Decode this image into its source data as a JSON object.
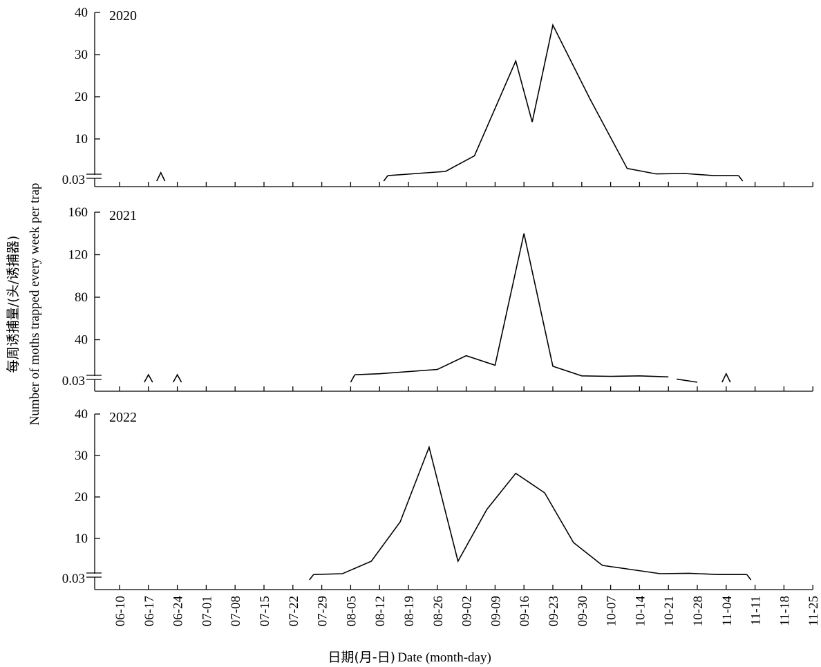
{
  "y_label_cn": "每周诱捕量/(头/诱捕器)",
  "y_label_en": "Number of moths trapped every week per trap",
  "x_label_cn": "日期(月-日)",
  "x_label_en": "Date (month-day)",
  "chart_data": {
    "type": "line",
    "x_categories": [
      "06-10",
      "06-17",
      "06-24",
      "07-01",
      "07-08",
      "07-15",
      "07-22",
      "07-29",
      "08-05",
      "08-12",
      "08-19",
      "08-26",
      "09-02",
      "09-09",
      "09-16",
      "09-23",
      "09-30",
      "10-07",
      "10-14",
      "10-21",
      "10-28",
      "11-04",
      "11-11",
      "11-18",
      "11-25"
    ],
    "xlabel": "日期(月-日) Date (month-day)",
    "ylabel": "每周诱捕量/(头/诱捕器) Number of moths trapped every week per trap",
    "panels": [
      {
        "year": "2020",
        "yticks": [
          0.03,
          10,
          20,
          30,
          40
        ],
        "ylim": [
          0,
          40
        ],
        "segments": [
          [
            [
              "06-19",
              0.03
            ],
            [
              "06-20",
              2.0
            ],
            [
              "06-21",
              0.03
            ]
          ],
          [
            [
              "08-13",
              0.03
            ],
            [
              "08-14",
              1.3
            ]
          ],
          [
            [
              "08-14",
              1.3
            ],
            [
              "08-28",
              2.3
            ],
            [
              "09-04",
              6.0
            ],
            [
              "09-14",
              28.5
            ],
            [
              "09-18",
              14.0
            ],
            [
              "09-23",
              37.0
            ],
            [
              "10-02",
              19.5
            ],
            [
              "10-11",
              3.0
            ],
            [
              "10-18",
              1.7
            ],
            [
              "10-25",
              1.8
            ],
            [
              "11-01",
              1.3
            ],
            [
              "11-07",
              1.3
            ]
          ],
          [
            [
              "11-07",
              1.3
            ],
            [
              "11-08",
              0.03
            ]
          ]
        ]
      },
      {
        "year": "2021",
        "yticks": [
          0.03,
          40,
          80,
          120,
          160
        ],
        "ylim": [
          0,
          160
        ],
        "segments": [
          [
            [
              "06-16",
              0.03
            ],
            [
              "06-17",
              7.0
            ],
            [
              "06-18",
              0.03
            ]
          ],
          [
            [
              "06-23",
              0.03
            ],
            [
              "06-24",
              7.0
            ],
            [
              "06-25",
              0.03
            ]
          ],
          [
            [
              "08-05",
              0.03
            ],
            [
              "08-06",
              7.0
            ]
          ],
          [
            [
              "08-06",
              7.0
            ],
            [
              "08-12",
              8.0
            ],
            [
              "08-26",
              12.0
            ],
            [
              "09-02",
              25.0
            ],
            [
              "09-09",
              16.0
            ],
            [
              "09-16",
              140.0
            ],
            [
              "09-23",
              15.0
            ],
            [
              "09-30",
              6.0
            ],
            [
              "10-07",
              5.5
            ],
            [
              "10-14",
              6.0
            ],
            [
              "10-21",
              5.0
            ]
          ],
          [
            [
              "10-23",
              3.0
            ],
            [
              "10-28",
              0.03
            ]
          ],
          [
            [
              "11-03",
              0.03
            ],
            [
              "11-04",
              8.0
            ],
            [
              "11-05",
              0.03
            ]
          ]
        ]
      },
      {
        "year": "2022",
        "yticks": [
          0.03,
          10,
          20,
          30,
          40
        ],
        "ylim": [
          0,
          40
        ],
        "segments": [
          [
            [
              "07-26",
              0.03
            ],
            [
              "07-27",
              1.3
            ]
          ],
          [
            [
              "07-27",
              1.3
            ],
            [
              "08-03",
              1.5
            ],
            [
              "08-10",
              4.5
            ],
            [
              "08-17",
              14.0
            ],
            [
              "08-24",
              32.0
            ],
            [
              "08-31",
              4.5
            ],
            [
              "09-07",
              17.0
            ],
            [
              "09-14",
              25.7
            ],
            [
              "09-21",
              21.0
            ],
            [
              "09-28",
              9.0
            ],
            [
              "10-05",
              3.5
            ],
            [
              "10-12",
              2.5
            ],
            [
              "10-19",
              1.5
            ],
            [
              "10-26",
              1.6
            ],
            [
              "11-02",
              1.3
            ],
            [
              "11-09",
              1.3
            ]
          ],
          [
            [
              "11-09",
              1.3
            ],
            [
              "11-10",
              0.03
            ]
          ]
        ]
      }
    ]
  }
}
